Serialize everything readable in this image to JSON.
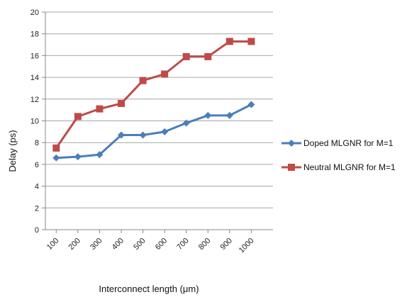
{
  "chart_data": {
    "type": "line",
    "xlabel": "Interconnect length (μm)",
    "ylabel": "Delay (ps)",
    "categories": [
      "100",
      "200",
      "300",
      "400",
      "500",
      "600",
      "700",
      "800",
      "900",
      "1000"
    ],
    "ylim": [
      0,
      20
    ],
    "yticks": [
      "0",
      "2",
      "4",
      "6",
      "8",
      "10",
      "12",
      "14",
      "16",
      "18",
      "20"
    ],
    "grid": "horizontal",
    "legend_position": "right",
    "series": [
      {
        "name": "Doped MLGNR for M=1",
        "color": "#4a7ebb",
        "marker": "diamond",
        "values": [
          6.6,
          6.7,
          6.9,
          8.7,
          8.7,
          9.0,
          9.8,
          10.5,
          10.5,
          11.5
        ]
      },
      {
        "name": "Neutral MLGNR for M=1",
        "color": "#be4b48",
        "marker": "square",
        "values": [
          7.5,
          10.4,
          11.1,
          11.6,
          13.7,
          14.3,
          15.9,
          15.9,
          17.3,
          17.3
        ]
      }
    ]
  }
}
